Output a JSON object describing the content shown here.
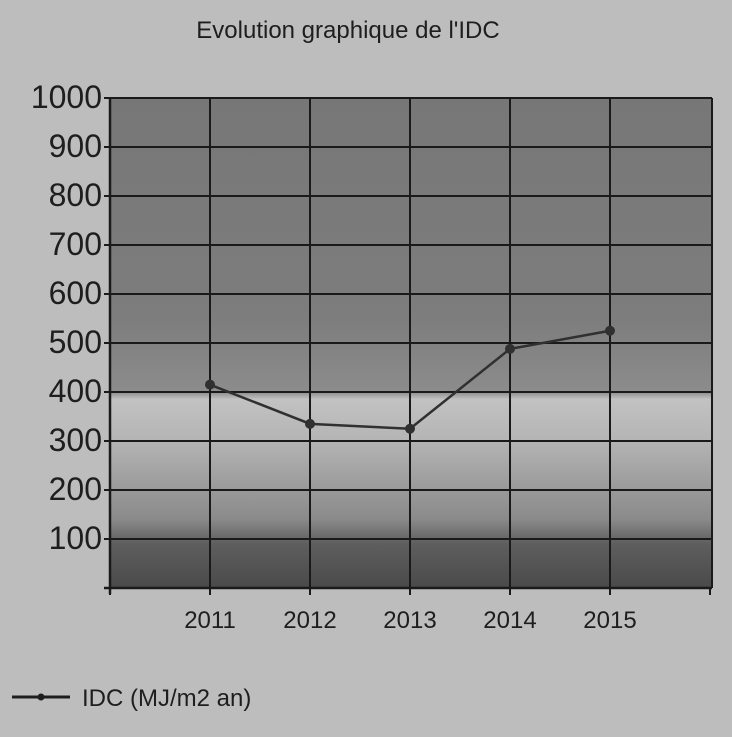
{
  "chart_data": {
    "type": "line",
    "title": "Evolution graphique de l'IDC",
    "xlabel": "",
    "ylabel": "",
    "categories": [
      "2011",
      "2012",
      "2013",
      "2014",
      "2015"
    ],
    "series": [
      {
        "name": "IDC (MJ/m2 an)",
        "values": [
          415,
          335,
          325,
          488,
          525
        ]
      }
    ],
    "ylim": [
      0,
      1000
    ],
    "yticks": [
      100,
      200,
      300,
      400,
      500,
      600,
      700,
      800,
      900,
      1000
    ],
    "grid": true,
    "legend_position": "bottom-left",
    "colors": {
      "page_background": "#bdbdbd",
      "band_low": "#555555",
      "band_mid": "#bcbcbc",
      "band_high": "#7a7a7a",
      "line": "#303030",
      "grid": "#1a1a1a",
      "text": "#1e1e1e"
    }
  }
}
